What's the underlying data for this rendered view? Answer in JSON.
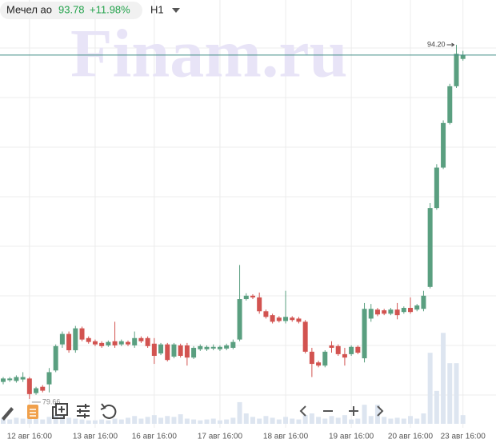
{
  "chart_data": {
    "type": "candlestick",
    "ticker": "Мечел ао",
    "last_price": 93.78,
    "change": "+11.98%",
    "interval": "H1",
    "watermark": "Finam.ru",
    "up_color": "#5a9f80",
    "down_color": "#d25350",
    "volume_color": "#dde5f0",
    "price_line_color": "#3f8c84",
    "ylim": [
      78.64,
      96.04
    ],
    "vlim": [
      0,
      120
    ],
    "annotations": [
      {
        "label": "94.20",
        "value": 94.2
      },
      {
        "label": "79.66",
        "value": 79.66
      }
    ],
    "categories": [
      null,
      null,
      null,
      null,
      "12 авг 16:00",
      null,
      null,
      null,
      null,
      null,
      null,
      null,
      null,
      null,
      "13 авг 16:00",
      null,
      null,
      null,
      null,
      null,
      null,
      null,
      null,
      "16 авг 16:00",
      null,
      null,
      null,
      null,
      null,
      null,
      null,
      null,
      null,
      "17 авг 16:00",
      null,
      null,
      null,
      null,
      null,
      null,
      null,
      null,
      null,
      "18 авг 16:00",
      null,
      null,
      null,
      null,
      null,
      null,
      null,
      null,
      null,
      "19 авг 16:00",
      null,
      null,
      null,
      null,
      null,
      null,
      null,
      null,
      "20 авг 16:00",
      null,
      null,
      null,
      null,
      null,
      null,
      null,
      "23 авг 16:00"
    ],
    "open": [
      80.36,
      80.43,
      80.4,
      80.46,
      80.5,
      79.9,
      80.16,
      80.26,
      80.83,
      81.9,
      82.33,
      81.66,
      82.56,
      82.16,
      82.03,
      81.96,
      81.86,
      82.03,
      81.9,
      82.0,
      81.86,
      82.16,
      82.16,
      81.93,
      81.53,
      81.9,
      81.4,
      81.86,
      81.86,
      81.36,
      81.7,
      81.7,
      81.73,
      81.7,
      81.73,
      81.76,
      82.1,
      83.76,
      83.9,
      83.83,
      83.26,
      83.1,
      83.0,
      82.86,
      83.0,
      82.96,
      82.83,
      81.6,
      81.16,
      81.03,
      81.86,
      81.83,
      81.5,
      81.5,
      81.8,
      81.33,
      82.96,
      83.33,
      83.3,
      83.16,
      83.33,
      83.23,
      83.4,
      83.33,
      83.36,
      84.26,
      87.5,
      89.16,
      90.99,
      92.5,
      93.62
    ],
    "high": [
      80.56,
      80.56,
      80.63,
      80.76,
      80.56,
      80.16,
      80.23,
      80.93,
      81.9,
      82.43,
      82.43,
      82.66,
      82.63,
      82.23,
      82.1,
      82.03,
      82.06,
      82.83,
      82.1,
      82.06,
      82.43,
      82.23,
      82.23,
      82.16,
      81.96,
      81.96,
      81.96,
      81.93,
      81.96,
      81.83,
      81.9,
      81.86,
      81.9,
      81.86,
      81.93,
      82.1,
      85.16,
      84.0,
      83.96,
      84.03,
      83.33,
      83.16,
      83.06,
      84.1,
      83.06,
      83.03,
      82.9,
      81.76,
      81.23,
      81.66,
      82.03,
      81.9,
      81.76,
      81.86,
      81.86,
      83.6,
      83.56,
      83.4,
      83.36,
      83.4,
      83.6,
      83.46,
      83.83,
      83.56,
      84.1,
      87.7,
      89.3,
      91.1,
      92.6,
      94.2,
      93.95
    ],
    "low": [
      80.26,
      80.36,
      80.33,
      80.36,
      79.66,
      79.83,
      79.93,
      79.93,
      80.76,
      81.76,
      81.56,
      81.56,
      82.03,
      81.93,
      81.83,
      81.76,
      81.8,
      81.76,
      81.83,
      81.83,
      81.76,
      81.96,
      81.76,
      81.1,
      81.46,
      81.2,
      81.33,
      81.36,
      81.03,
      81.3,
      81.63,
      81.63,
      81.66,
      81.63,
      81.66,
      81.7,
      82.03,
      83.7,
      83.76,
      83.16,
      82.96,
      82.76,
      82.8,
      82.76,
      82.83,
      82.76,
      81.53,
      80.56,
      80.96,
      80.96,
      81.56,
      81.43,
      81.03,
      81.43,
      81.5,
      81.16,
      82.83,
      83.06,
      83.1,
      83.1,
      82.93,
      83.16,
      83.16,
      83.26,
      83.26,
      84.2,
      87.43,
      89.1,
      90.93,
      92.43,
      93.55
    ],
    "close": [
      80.5,
      80.5,
      80.56,
      80.56,
      79.86,
      80.1,
      80.0,
      80.76,
      81.83,
      82.33,
      81.66,
      82.56,
      82.1,
      82.0,
      81.9,
      81.83,
      82.0,
      81.86,
      82.03,
      81.9,
      82.16,
      82.03,
      81.83,
      81.43,
      81.9,
      81.26,
      81.9,
      81.43,
      81.36,
      81.76,
      81.83,
      81.8,
      81.8,
      81.8,
      81.86,
      82.0,
      83.76,
      83.9,
      83.83,
      83.26,
      83.03,
      82.83,
      82.86,
      83.03,
      82.9,
      82.83,
      81.6,
      81.1,
      81.03,
      81.6,
      81.76,
      81.5,
      81.36,
      81.8,
      81.56,
      83.36,
      83.36,
      83.13,
      83.16,
      83.33,
      83.1,
      83.4,
      83.23,
      83.5,
      83.9,
      87.5,
      89.16,
      90.99,
      92.5,
      93.83,
      93.78
    ],
    "volume": [
      6,
      5,
      7,
      6,
      9,
      6,
      5,
      8,
      10,
      9,
      7,
      6,
      5,
      4,
      4,
      5,
      4,
      6,
      5,
      7,
      9,
      6,
      8,
      10,
      7,
      9,
      8,
      11,
      6,
      5,
      4,
      5,
      6,
      4,
      5,
      7,
      25,
      12,
      8,
      6,
      9,
      7,
      5,
      8,
      6,
      5,
      10,
      12,
      8,
      6,
      9,
      7,
      10,
      5,
      6,
      22,
      9,
      22,
      8,
      6,
      7,
      6,
      9,
      6,
      12,
      82,
      38,
      105,
      70,
      70,
      10
    ]
  }
}
